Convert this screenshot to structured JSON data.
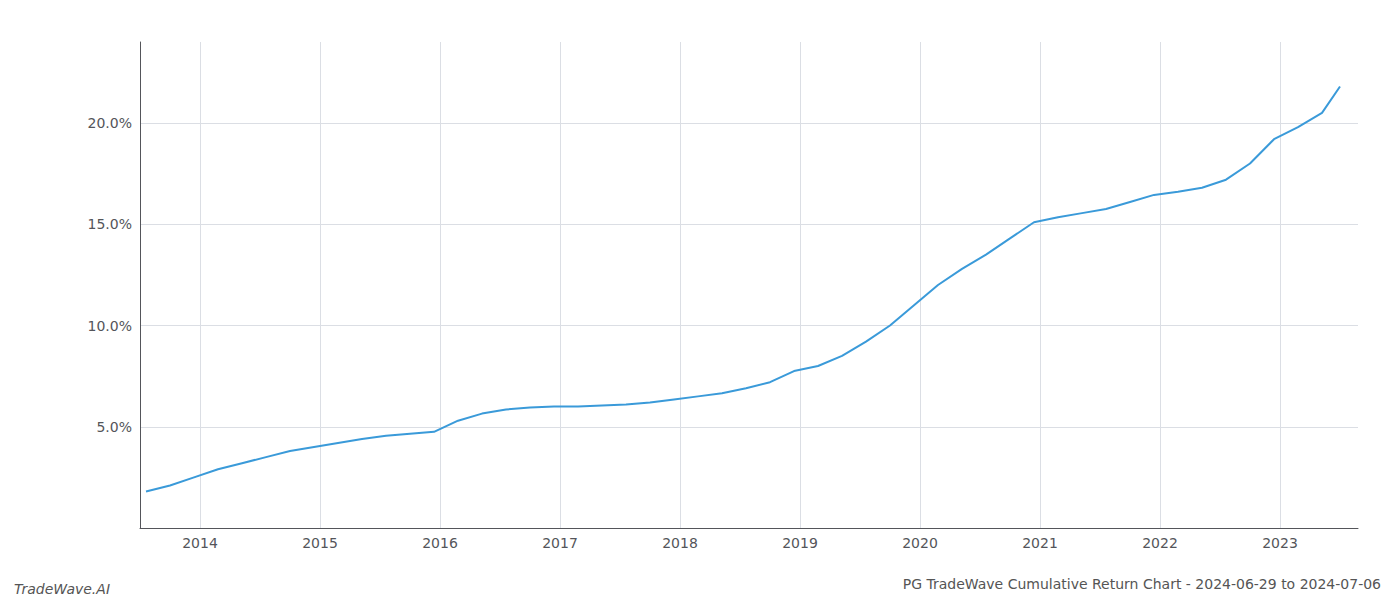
{
  "chart_data": {
    "type": "line",
    "title": "PG TradeWave Cumulative Return Chart - 2024-06-29 to 2024-07-06",
    "annotations": [
      "TradeWave.AI"
    ],
    "color": "#3a9ad9",
    "grid": true,
    "x": [
      2013.55,
      2013.75,
      2013.95,
      2014.15,
      2014.35,
      2014.55,
      2014.75,
      2014.95,
      2015.15,
      2015.35,
      2015.55,
      2015.75,
      2015.95,
      2016.15,
      2016.35,
      2016.55,
      2016.75,
      2016.95,
      2017.15,
      2017.35,
      2017.55,
      2017.75,
      2017.95,
      2018.15,
      2018.35,
      2018.55,
      2018.75,
      2018.95,
      2019.15,
      2019.35,
      2019.55,
      2019.75,
      2019.95,
      2020.15,
      2020.35,
      2020.55,
      2020.75,
      2020.95,
      2021.15,
      2021.35,
      2021.55,
      2021.75,
      2021.95,
      2022.15,
      2022.35,
      2022.55,
      2022.75,
      2022.95,
      2023.15,
      2023.35,
      2023.5
    ],
    "values": [
      1.8,
      2.1,
      2.5,
      2.9,
      3.2,
      3.5,
      3.8,
      4.0,
      4.2,
      4.4,
      4.55,
      4.65,
      4.75,
      5.3,
      5.65,
      5.85,
      5.95,
      6.0,
      6.0,
      6.05,
      6.1,
      6.2,
      6.35,
      6.5,
      6.65,
      6.9,
      7.2,
      7.75,
      8.0,
      8.5,
      9.2,
      10.0,
      11.0,
      12.0,
      12.8,
      13.5,
      14.3,
      15.1,
      15.35,
      15.55,
      15.75,
      16.1,
      16.45,
      16.6,
      16.8,
      17.2,
      18.0,
      19.2,
      19.8,
      20.5,
      21.8
    ],
    "xlim": [
      2013.5,
      2023.65
    ],
    "xticks": [
      2014,
      2015,
      2016,
      2017,
      2018,
      2019,
      2020,
      2021,
      2022,
      2023
    ],
    "ylim": [
      0,
      24
    ],
    "yticks": [
      {
        "value": 5.0,
        "label": "5.0%"
      },
      {
        "value": 10.0,
        "label": "10.0%"
      },
      {
        "value": 15.0,
        "label": "15.0%"
      },
      {
        "value": 20.0,
        "label": "20.0%"
      }
    ]
  }
}
